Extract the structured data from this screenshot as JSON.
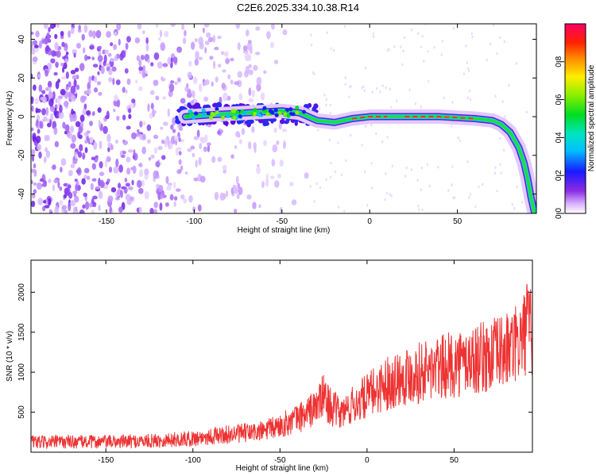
{
  "title": "C2E6.2025.334.10.38.R14",
  "colors": {
    "snr_line": "#ee3333",
    "ridge_core": "#ff3322",
    "scatter": "#7a2cf0"
  },
  "chart_data": [
    {
      "type": "heatmap",
      "title": "C2E6.2025.334.10.38.R14",
      "xlabel": "Height of straight line (km)",
      "ylabel": "Frequency (Hz)",
      "xlim": [
        -193,
        95
      ],
      "ylim": [
        -50,
        48
      ],
      "xticks": [
        -150,
        -100,
        -50,
        0,
        50
      ],
      "yticks": [
        -40,
        -20,
        0,
        20,
        40
      ],
      "ridge": {
        "x": [
          -105,
          -90,
          -70,
          -50,
          -40,
          -30,
          -20,
          -10,
          0,
          10,
          20,
          40,
          60,
          70,
          75,
          80,
          85,
          88,
          90,
          92,
          94
        ],
        "y": [
          0,
          1,
          2,
          3,
          2,
          -2,
          -3,
          -1,
          0,
          0,
          0,
          0,
          -1,
          -2,
          -4,
          -8,
          -16,
          -24,
          -32,
          -42,
          -50
        ]
      },
      "colorbar": {
        "label": "Normalized spectral amplitude",
        "range": [
          0,
          1
        ],
        "ticks": [
          0.0,
          0.2,
          0.4,
          0.6,
          0.8
        ],
        "tick_labels": [
          "0.0",
          "0.2",
          "0.4",
          "0.6",
          "0.8"
        ]
      }
    },
    {
      "type": "line",
      "xlabel": "Height of straight line (km)",
      "ylabel": "SNR (10 * v/v)",
      "xlim": [
        -193,
        95
      ],
      "ylim": [
        0,
        2400
      ],
      "xticks": [
        -150,
        -100,
        -50,
        0,
        50
      ],
      "yticks": [
        500,
        1000,
        1500,
        2000
      ],
      "series": [
        {
          "x": [
            -193,
            -175,
            -150,
            -125,
            -100,
            -90,
            -75,
            -60,
            -50,
            -40,
            -30,
            -25,
            -20,
            -15,
            -10,
            0,
            10,
            20,
            30,
            40,
            50,
            60,
            70,
            80,
            85,
            90,
            92,
            94
          ],
          "y": [
            120,
            130,
            130,
            140,
            170,
            200,
            230,
            260,
            330,
            420,
            550,
            700,
            550,
            480,
            560,
            700,
            850,
            950,
            1000,
            1040,
            1100,
            1150,
            1200,
            1270,
            1320,
            1450,
            1600,
            1500
          ]
        }
      ]
    }
  ]
}
